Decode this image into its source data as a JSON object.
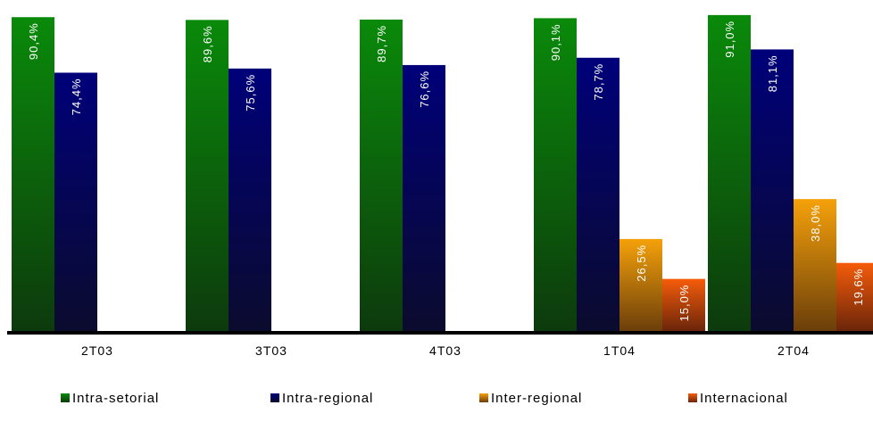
{
  "chart_data": {
    "type": "bar",
    "categories": [
      "2T03",
      "3T03",
      "4T03",
      "1T04",
      "2T04"
    ],
    "series": [
      {
        "name": "Intra-setorial",
        "color_top": "#0a8a0a",
        "color_bottom": "#0d3a0d",
        "values": [
          90.4,
          89.6,
          89.7,
          90.1,
          91.0
        ],
        "labels": [
          "90,4%",
          "89,6%",
          "89,7%",
          "90,1%",
          "91,0%"
        ]
      },
      {
        "name": "Intra-regional",
        "color_top": "#00007a",
        "color_bottom": "#0b0b2e",
        "values": [
          74.4,
          75.6,
          76.6,
          78.7,
          81.1
        ],
        "labels": [
          "74,4%",
          "75,6%",
          "76,6%",
          "78,7%",
          "81,1%"
        ]
      },
      {
        "name": "Inter-regional",
        "color_top": "#f5a10a",
        "color_bottom": "#6b3e0a",
        "values": [
          null,
          null,
          null,
          26.5,
          38.0
        ],
        "labels": [
          "",
          "",
          "",
          "26,5%",
          "38,0%"
        ]
      },
      {
        "name": "Internacional",
        "color_top": "#f55c0a",
        "color_bottom": "#6b250a",
        "values": [
          null,
          null,
          null,
          15.0,
          19.6
        ],
        "labels": [
          "",
          "",
          "",
          "15,0%",
          "19,6%"
        ]
      }
    ],
    "ylim": [
      0,
      92
    ],
    "grid": false,
    "legend_position": "bottom"
  }
}
